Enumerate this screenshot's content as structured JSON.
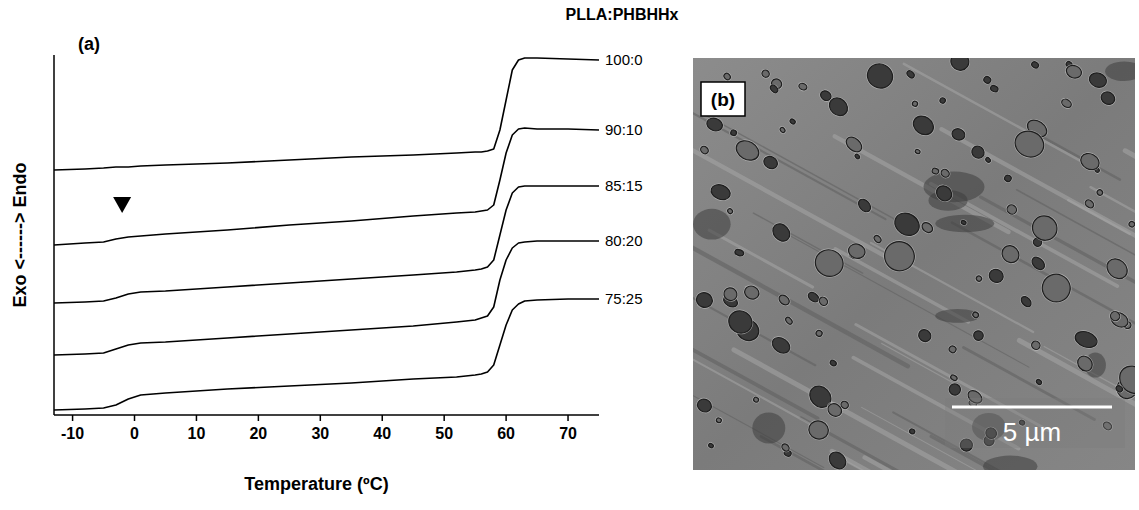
{
  "chart_data": {
    "type": "line",
    "panel_label": "(a)",
    "title": "PLLA:PHBHHx",
    "x_label": "Temperature (ºC)",
    "y_label": "Exo <------> Endo",
    "x": [
      -13,
      -8,
      -5,
      -3,
      -1,
      1,
      5,
      15,
      25,
      35,
      45,
      52,
      55,
      56,
      57,
      58,
      59,
      60,
      61,
      62,
      63,
      65,
      70,
      75
    ],
    "xlim": [
      -13,
      75
    ],
    "xticks": [
      -10,
      0,
      10,
      20,
      30,
      40,
      50,
      60,
      70
    ],
    "ylim": [
      0,
      360
    ],
    "tick_labels": "x",
    "color": "#000000",
    "annotations": [
      {
        "x": -2,
        "y": 210,
        "marker": "triangle"
      }
    ],
    "series": [
      {
        "name": "100:0",
        "values": [
          245,
          246,
          247,
          248,
          248,
          249,
          250,
          252,
          255,
          258,
          260,
          262,
          263,
          263,
          264,
          266,
          285,
          315,
          345,
          355,
          357,
          357,
          356,
          355
        ]
      },
      {
        "name": "90:10",
        "values": [
          170,
          172,
          173,
          176,
          178,
          179,
          181,
          185,
          190,
          194,
          199,
          202,
          203,
          204,
          205,
          210,
          235,
          262,
          280,
          286,
          287,
          286,
          286,
          285
        ]
      },
      {
        "name": "85:15",
        "values": [
          112,
          113,
          114,
          117,
          121,
          123,
          124,
          128,
          132,
          136,
          140,
          143,
          145,
          146,
          148,
          155,
          180,
          205,
          222,
          228,
          229,
          229,
          229,
          229
        ]
      },
      {
        "name": "80:20",
        "values": [
          60,
          61,
          62,
          66,
          70,
          72,
          73,
          77,
          81,
          85,
          89,
          93,
          95,
          97,
          99,
          108,
          135,
          155,
          167,
          172,
          173,
          174,
          174,
          174
        ]
      },
      {
        "name": "75:25",
        "values": [
          5,
          6,
          7,
          10,
          16,
          20,
          22,
          26,
          29,
          32,
          36,
          38,
          40,
          41,
          43,
          50,
          70,
          90,
          105,
          111,
          114,
          115,
          116,
          116
        ]
      }
    ]
  },
  "image_panel": {
    "panel_label": "(b)",
    "scale_bar_label": "5 µm"
  }
}
